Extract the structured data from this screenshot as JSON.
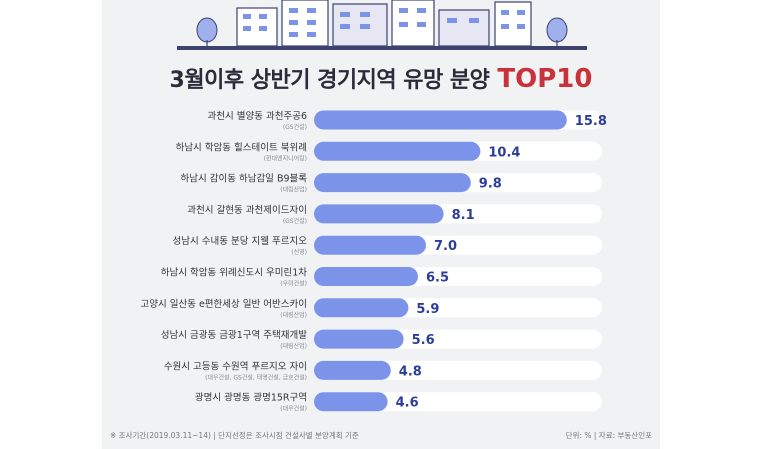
{
  "title": {
    "main": "3월이후 상반기 경기지역 유망 분양",
    "highlight": "TOP10"
  },
  "footer": {
    "note": "※ 조사기간(2019.03.11~14) | 단지선정은 조사시점 건설사별 분양계획 기준",
    "unit": "단위: % | 자료: 부동산인포"
  },
  "colors": {
    "bar": "#7b94ea",
    "track": "#ffffff",
    "value": "#2c3e98",
    "accent": "#c8323b",
    "background": "#f1f2f4"
  },
  "chart_data": {
    "type": "bar",
    "orientation": "horizontal",
    "xlim": [
      0,
      18
    ],
    "categories": [
      "과천시 별양동 과천주공6",
      "하남시 학암동 힐스테이트 북위례",
      "하남시 감이동 하남감일 B9블록",
      "과천시 갈현동 과천제이드자이",
      "성남시 수내동 분당 지웰 푸르지오",
      "하남시 학암동 위례신도시 우미린1차",
      "고양시 일산동 e편한세상 일반 어반스카이",
      "성남시 금광동 금광1구역 주택재개발",
      "수원시 고등동 수원역 푸르지오 자이",
      "광명시 광명동 광명15R구역"
    ],
    "builders": [
      "(GS건설)",
      "(현대엔지니어링)",
      "(대림산업)",
      "(GS건설)",
      "(신영)",
      "(우미건설)",
      "(대림산업)",
      "(대림산업)",
      "(대우건설, GS건설, 태영건설, 금호건설)",
      "(대우건설)"
    ],
    "values": [
      15.8,
      10.4,
      9.8,
      8.1,
      7.0,
      6.5,
      5.9,
      5.6,
      4.8,
      4.6
    ],
    "value_labels": [
      "15.8",
      "10.4",
      "9.8",
      "8.1",
      "7.0",
      "6.5",
      "5.9",
      "5.6",
      "4.8",
      "4.6"
    ]
  }
}
